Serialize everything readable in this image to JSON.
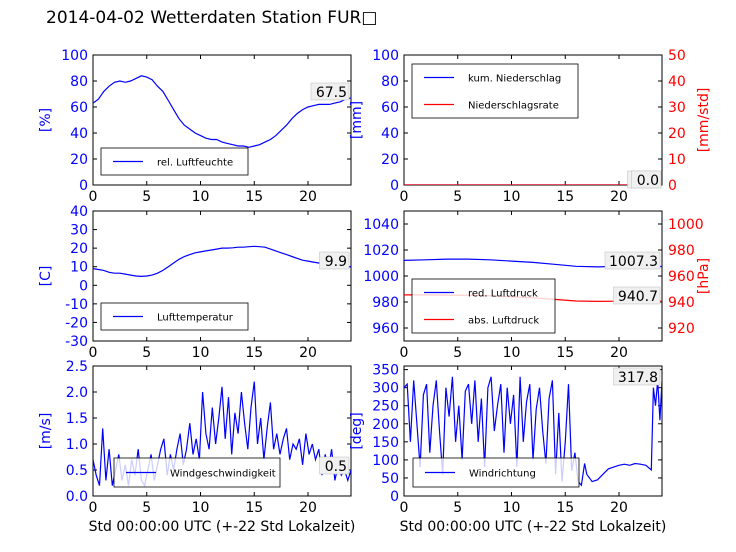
{
  "title": "2014-04-02 Wetterdaten Station FUR□",
  "colors": {
    "left_axis": "#0000ff",
    "right_axis": "#ff0000",
    "series_blue": "#0000ff",
    "series_red": "#ff0000"
  },
  "chart_data": [
    {
      "type": "line",
      "id": "humidity",
      "xlim": [
        0,
        24
      ],
      "xticks": [
        0,
        5,
        10,
        15,
        20
      ],
      "ylim": [
        0,
        100
      ],
      "yticks": [
        0,
        20,
        40,
        60,
        80,
        100
      ],
      "ylabel": "[%]",
      "xlabel": "",
      "value_label": "67.5",
      "legend": {
        "placement": "lower-left"
      },
      "series": [
        {
          "name": "rel. Luftfeuchte",
          "color": "#0000ff",
          "x": [
            0,
            0.5,
            1,
            1.5,
            2,
            2.5,
            3,
            3.5,
            4,
            4.5,
            5,
            5.5,
            6,
            6.5,
            7,
            7.5,
            8,
            8.5,
            9,
            9.5,
            10,
            10.5,
            11,
            11.5,
            12,
            12.5,
            13,
            13.5,
            14,
            14.5,
            15,
            15.5,
            16,
            16.5,
            17,
            17.5,
            18,
            18.5,
            19,
            19.5,
            20,
            20.5,
            21,
            21.5,
            22,
            22.5,
            23,
            23.5,
            24
          ],
          "y": [
            63,
            66,
            72,
            76,
            79,
            80,
            79,
            80,
            82,
            84,
            83,
            81,
            76,
            72,
            65,
            58,
            51,
            46,
            43,
            40,
            38,
            36,
            35,
            35,
            33,
            32,
            31,
            30,
            30,
            29,
            30,
            31,
            33,
            35,
            38,
            42,
            46,
            51,
            55,
            58,
            60,
            61,
            62,
            62,
            62,
            63,
            64,
            66,
            67
          ]
        }
      ]
    },
    {
      "type": "line",
      "id": "precipitation",
      "xlim": [
        0,
        24
      ],
      "xticks": [
        0,
        5,
        10,
        15,
        20
      ],
      "ylim": [
        0,
        100
      ],
      "yticks": [
        0,
        20,
        40,
        60,
        80,
        100
      ],
      "ylabel": "[mm]",
      "y2lim": [
        0,
        50
      ],
      "y2ticks": [
        0,
        10,
        20,
        30,
        40,
        50
      ],
      "y2label": "[mm/std]",
      "value_labels": [
        "0.0",
        "0.0"
      ],
      "legend": {
        "placement": "upper-left"
      },
      "series": [
        {
          "name": "kum. Niederschlag",
          "color": "#0000ff",
          "axis": "left",
          "x": [
            0,
            24
          ],
          "y": [
            0,
            0
          ]
        },
        {
          "name": "Niederschlagsrate",
          "color": "#ff0000",
          "axis": "right",
          "x": [
            0,
            24
          ],
          "y": [
            0,
            0
          ]
        }
      ]
    },
    {
      "type": "line",
      "id": "temperature",
      "xlim": [
        0,
        24
      ],
      "xticks": [
        0,
        5,
        10,
        15,
        20
      ],
      "ylim": [
        -30,
        40
      ],
      "yticks": [
        -30,
        -20,
        -10,
        0,
        10,
        20,
        30,
        40
      ],
      "ylabel": "[C]",
      "value_label": "9.9",
      "legend": {
        "placement": "lower-left"
      },
      "series": [
        {
          "name": "Lufttemperatur",
          "color": "#0000ff",
          "x": [
            0,
            0.5,
            1,
            1.5,
            2,
            2.5,
            3,
            3.5,
            4,
            4.5,
            5,
            5.5,
            6,
            6.5,
            7,
            7.5,
            8,
            8.5,
            9,
            9.5,
            10,
            10.5,
            11,
            11.5,
            12,
            12.5,
            13,
            13.5,
            14,
            14.5,
            15,
            15.5,
            16,
            16.5,
            17,
            17.5,
            18,
            18.5,
            19,
            19.5,
            20,
            20.5,
            21,
            21.5,
            22,
            22.5,
            23,
            23.5,
            24
          ],
          "y": [
            9,
            8.5,
            8,
            7,
            6.5,
            6.5,
            6,
            5.5,
            5,
            4.8,
            5,
            5.5,
            6.5,
            8,
            10,
            12,
            14,
            15.5,
            16.5,
            17.5,
            18,
            18.5,
            19,
            19.5,
            20,
            20,
            20.2,
            20.5,
            20.5,
            20.8,
            21,
            20.8,
            20.5,
            19.5,
            18.5,
            17.5,
            16.5,
            15.5,
            14.5,
            13.5,
            13,
            12.5,
            12,
            11.5,
            11,
            10.8,
            10.5,
            10.2,
            9.9
          ]
        }
      ]
    },
    {
      "type": "line",
      "id": "pressure",
      "xlim": [
        0,
        24
      ],
      "xticks": [
        0,
        5,
        10,
        15,
        20
      ],
      "ylim": [
        950,
        1050
      ],
      "yticks": [
        960,
        980,
        1000,
        1020,
        1040
      ],
      "y2lim": [
        910,
        1010
      ],
      "y2ticks": [
        920,
        940,
        960,
        980,
        1000
      ],
      "y2label": "[hPa]",
      "value_labels": [
        "1007.3",
        "940.7"
      ],
      "legend": {
        "placement": "lower-left"
      },
      "series": [
        {
          "name": "red. Luftdruck",
          "color": "#0000ff",
          "axis": "left",
          "x": [
            0,
            2,
            4,
            6,
            8,
            10,
            12,
            14,
            16,
            18,
            20,
            22,
            24
          ],
          "y": [
            1012,
            1012.5,
            1013,
            1013,
            1012.5,
            1011.5,
            1010.5,
            1009,
            1007.5,
            1007,
            1007.5,
            1007.3,
            1007.3
          ]
        },
        {
          "name": "abs. Luftdruck",
          "color": "#ff0000",
          "axis": "right",
          "x": [
            0,
            2,
            4,
            6,
            8,
            10,
            12,
            14,
            16,
            18,
            20,
            22,
            24
          ],
          "y": [
            945.5,
            945.5,
            945.3,
            945.2,
            944.8,
            944,
            943.2,
            942,
            940.8,
            940.5,
            940.6,
            940.7,
            940.7
          ]
        }
      ]
    },
    {
      "type": "line",
      "id": "windspeed",
      "xlim": [
        0,
        24
      ],
      "xticks": [
        0,
        5,
        10,
        15,
        20
      ],
      "ylim": [
        0,
        2.5
      ],
      "yticks": [
        0.0,
        0.5,
        1.0,
        1.5,
        2.0,
        2.5
      ],
      "ylabel": "[m/s]",
      "xlabel": "Std 00:00:00 UTC (+-22 Std Lokalzeit)",
      "value_label": "0.5",
      "legend": {
        "placement": "lower-center"
      },
      "series": [
        {
          "name": "Windgeschwindigkeit",
          "color": "#0000ff",
          "x": [
            0,
            0.3,
            0.6,
            0.9,
            1.2,
            1.5,
            1.8,
            2.1,
            2.4,
            2.7,
            3,
            3.3,
            3.6,
            3.9,
            4.2,
            4.5,
            4.8,
            5.1,
            5.4,
            5.7,
            6,
            6.3,
            6.6,
            6.9,
            7.2,
            7.5,
            7.8,
            8.1,
            8.4,
            8.7,
            9,
            9.3,
            9.6,
            9.9,
            10.2,
            10.5,
            10.8,
            11.1,
            11.4,
            11.7,
            12,
            12.3,
            12.6,
            12.9,
            13.2,
            13.5,
            13.8,
            14.1,
            14.4,
            14.7,
            15,
            15.3,
            15.6,
            15.9,
            16.2,
            16.5,
            16.8,
            17.1,
            17.4,
            17.7,
            18,
            18.3,
            18.6,
            18.9,
            19.2,
            19.5,
            19.8,
            20.1,
            20.4,
            20.7,
            21,
            21.3,
            21.6,
            21.9,
            22.2,
            22.5,
            22.8,
            23.1,
            23.4,
            23.7,
            24
          ],
          "y": [
            0.7,
            0.4,
            0.2,
            1.3,
            0.3,
            0.9,
            0.2,
            0.5,
            0.8,
            0.3,
            0.6,
            0.2,
            0.7,
            0.4,
            0.9,
            0.3,
            0.2,
            0.5,
            0.8,
            0.3,
            0.6,
            0.9,
            1.1,
            0.4,
            0.8,
            0.5,
            0.9,
            1.2,
            0.6,
            0.9,
            1.4,
            0.8,
            1.1,
            0.7,
            2.0,
            1.2,
            0.9,
            1.7,
            1.0,
            1.5,
            2.1,
            1.1,
            1.9,
            0.8,
            1.6,
            1.2,
            2.0,
            1.4,
            0.9,
            1.7,
            2.2,
            1.0,
            1.5,
            0.7,
            1.3,
            1.8,
            0.9,
            1.2,
            0.8,
            1.1,
            1.3,
            0.7,
            1.0,
            0.9,
            1.1,
            0.6,
            1.2,
            0.8,
            1.0,
            0.7,
            0.9,
            0.4,
            0.8,
            0.5,
            0.9,
            0.3,
            0.6,
            0.4,
            0.5,
            0.3,
            0.5
          ]
        }
      ]
    },
    {
      "type": "line",
      "id": "winddirection",
      "xlim": [
        0,
        24
      ],
      "xticks": [
        0,
        5,
        10,
        15,
        20
      ],
      "ylim": [
        0,
        360
      ],
      "yticks": [
        0,
        50,
        100,
        150,
        200,
        250,
        300,
        350
      ],
      "ylabel": "[deg]",
      "xlabel": "Std 00:00:00 UTC (+-22 Std Lokalzeit)",
      "value_label": "317.8",
      "legend": {
        "placement": "lower-center"
      },
      "series": [
        {
          "name": "Windrichtung",
          "color": "#0000ff",
          "x": [
            0,
            0.3,
            0.6,
            0.9,
            1.2,
            1.5,
            1.8,
            2.1,
            2.4,
            2.7,
            3,
            3.3,
            3.6,
            3.9,
            4.2,
            4.5,
            4.8,
            5.1,
            5.4,
            5.7,
            6,
            6.3,
            6.6,
            6.9,
            7.2,
            7.5,
            7.8,
            8.1,
            8.4,
            8.7,
            9,
            9.3,
            9.6,
            9.9,
            10.2,
            10.5,
            10.8,
            11.1,
            11.4,
            11.7,
            12,
            12.3,
            12.6,
            12.9,
            13.2,
            13.5,
            13.8,
            14.1,
            14.4,
            14.7,
            15,
            15.3,
            15.6,
            15.9,
            16.2,
            16.5,
            16.8,
            17,
            17.5,
            18,
            18.5,
            19,
            19.5,
            20,
            20.5,
            21,
            21.5,
            22,
            22.5,
            23,
            23.2,
            23.4,
            23.6,
            23.8,
            24
          ],
          "y": [
            300,
            310,
            150,
            320,
            200,
            80,
            280,
            310,
            120,
            250,
            320,
            180,
            60,
            300,
            220,
            330,
            150,
            250,
            100,
            290,
            310,
            200,
            320,
            150,
            270,
            80,
            300,
            330,
            180,
            250,
            310,
            120,
            300,
            200,
            280,
            80,
            330,
            150,
            260,
            310,
            100,
            240,
            300,
            180,
            90,
            270,
            320,
            60,
            230,
            40,
            150,
            310,
            70,
            120,
            40,
            30,
            90,
            60,
            40,
            45,
            60,
            75,
            80,
            85,
            88,
            85,
            90,
            88,
            85,
            72,
            300,
            250,
            320,
            210,
            318
          ]
        }
      ]
    }
  ]
}
